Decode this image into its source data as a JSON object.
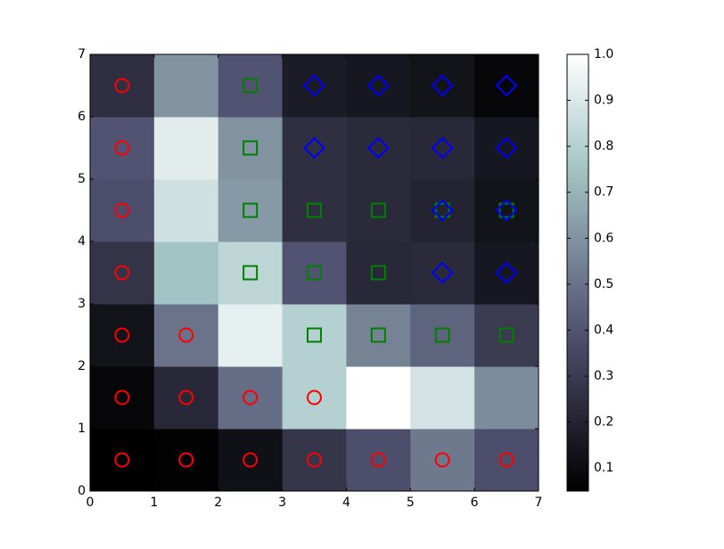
{
  "chart_data": {
    "type": "heatmap",
    "xlim": [
      0,
      7
    ],
    "ylim": [
      0,
      7
    ],
    "xticks": [
      0,
      1,
      2,
      3,
      4,
      5,
      6,
      7
    ],
    "yticks": [
      0,
      1,
      2,
      3,
      4,
      5,
      6,
      7
    ],
    "colormap": "bone",
    "clim": [
      0.05,
      1.0
    ],
    "cticks": [
      0.1,
      0.2,
      0.3,
      0.4,
      0.5,
      0.6,
      0.7,
      0.8,
      0.9,
      {
        "value": 1,
        "label": "1.0"
      }
    ],
    "z": [
      [
        0.05,
        0.06,
        0.12,
        0.28,
        0.38,
        0.52,
        0.38
      ],
      [
        0.08,
        0.22,
        0.48,
        0.8,
        1.0,
        0.88,
        0.58
      ],
      [
        0.13,
        0.5,
        0.93,
        0.8,
        0.55,
        0.45,
        0.3
      ],
      [
        0.27,
        0.75,
        0.82,
        0.4,
        0.22,
        0.23,
        0.15
      ],
      [
        0.38,
        0.87,
        0.62,
        0.25,
        0.23,
        0.2,
        0.13
      ],
      [
        0.4,
        0.92,
        0.6,
        0.25,
        0.23,
        0.22,
        0.15
      ],
      [
        0.25,
        0.6,
        0.4,
        0.17,
        0.15,
        0.13,
        0.08
      ]
    ],
    "series": [
      {
        "color": "#ff0000",
        "marker": "o",
        "x": [
          0.5,
          1.5,
          2.5,
          3.5,
          4.5,
          5.5,
          6.5,
          0.5,
          1.5,
          2.5,
          3.5,
          0.5,
          1.5,
          0.5,
          0.5,
          0.5,
          0.5
        ],
        "y": [
          0.5,
          0.5,
          0.5,
          0.5,
          0.5,
          0.5,
          0.5,
          1.5,
          1.5,
          1.5,
          1.5,
          2.5,
          2.5,
          3.5,
          4.5,
          5.5,
          6.5
        ]
      },
      {
        "color": "#008000",
        "marker": "s",
        "x": [
          2.5,
          2.5,
          2.5,
          3.5,
          4.5,
          5.5,
          6.5,
          2.5,
          3.5,
          4.5,
          3.5,
          4.5,
          5.5,
          6.5
        ],
        "y": [
          6.5,
          5.5,
          4.5,
          4.5,
          4.5,
          4.5,
          4.5,
          3.5,
          3.5,
          3.5,
          2.5,
          2.5,
          2.5,
          2.5
        ]
      },
      {
        "color": "#0000ff",
        "marker": "D",
        "x": [
          3.5,
          4.5,
          5.5,
          6.5,
          3.5,
          4.5,
          5.5,
          6.5,
          5.5,
          6.5,
          5.5,
          6.5
        ],
        "y": [
          6.5,
          6.5,
          6.5,
          6.5,
          5.5,
          5.5,
          5.5,
          5.5,
          4.5,
          4.5,
          3.5,
          3.5
        ]
      }
    ]
  }
}
